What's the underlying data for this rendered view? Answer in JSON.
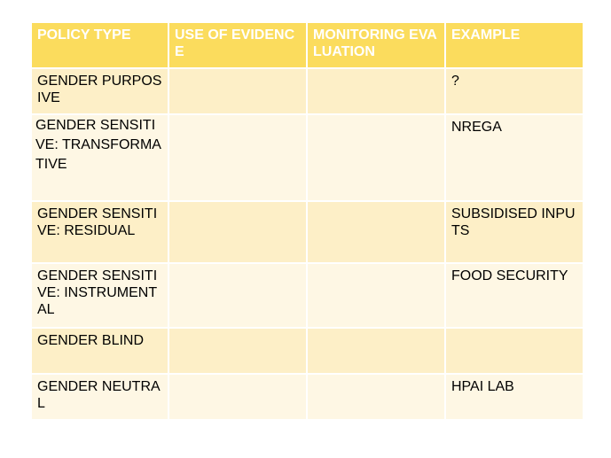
{
  "table": {
    "headers": [
      "POLICY TYPE",
      "USE OF EVIDENCE",
      "MONITORING EVALUATION",
      "EXAMPLE"
    ],
    "rows": [
      [
        "GENDER PURPOSIVE",
        "",
        "",
        "?"
      ],
      [
        "GENDER SENSITIVE: TRANSFORMATIVE",
        "",
        "",
        "NREGA"
      ],
      [
        "GENDER SENSITIVE: RESIDUAL",
        "",
        "",
        "SUBSIDISED INPUTS"
      ],
      [
        "GENDER SENSITIVE: INSTRUMENTAL",
        "",
        "",
        "FOOD SECURITY"
      ],
      [
        "GENDER BLIND",
        "",
        "",
        ""
      ],
      [
        "GENDER NEUTRAL",
        "",
        "",
        "HPAI LAB"
      ]
    ]
  },
  "colors": {
    "header_bg": "#fbdc5d",
    "header_text": "#ffffff",
    "row_odd_bg": "#fdefc7",
    "row_even_bg": "#fef7e4"
  }
}
